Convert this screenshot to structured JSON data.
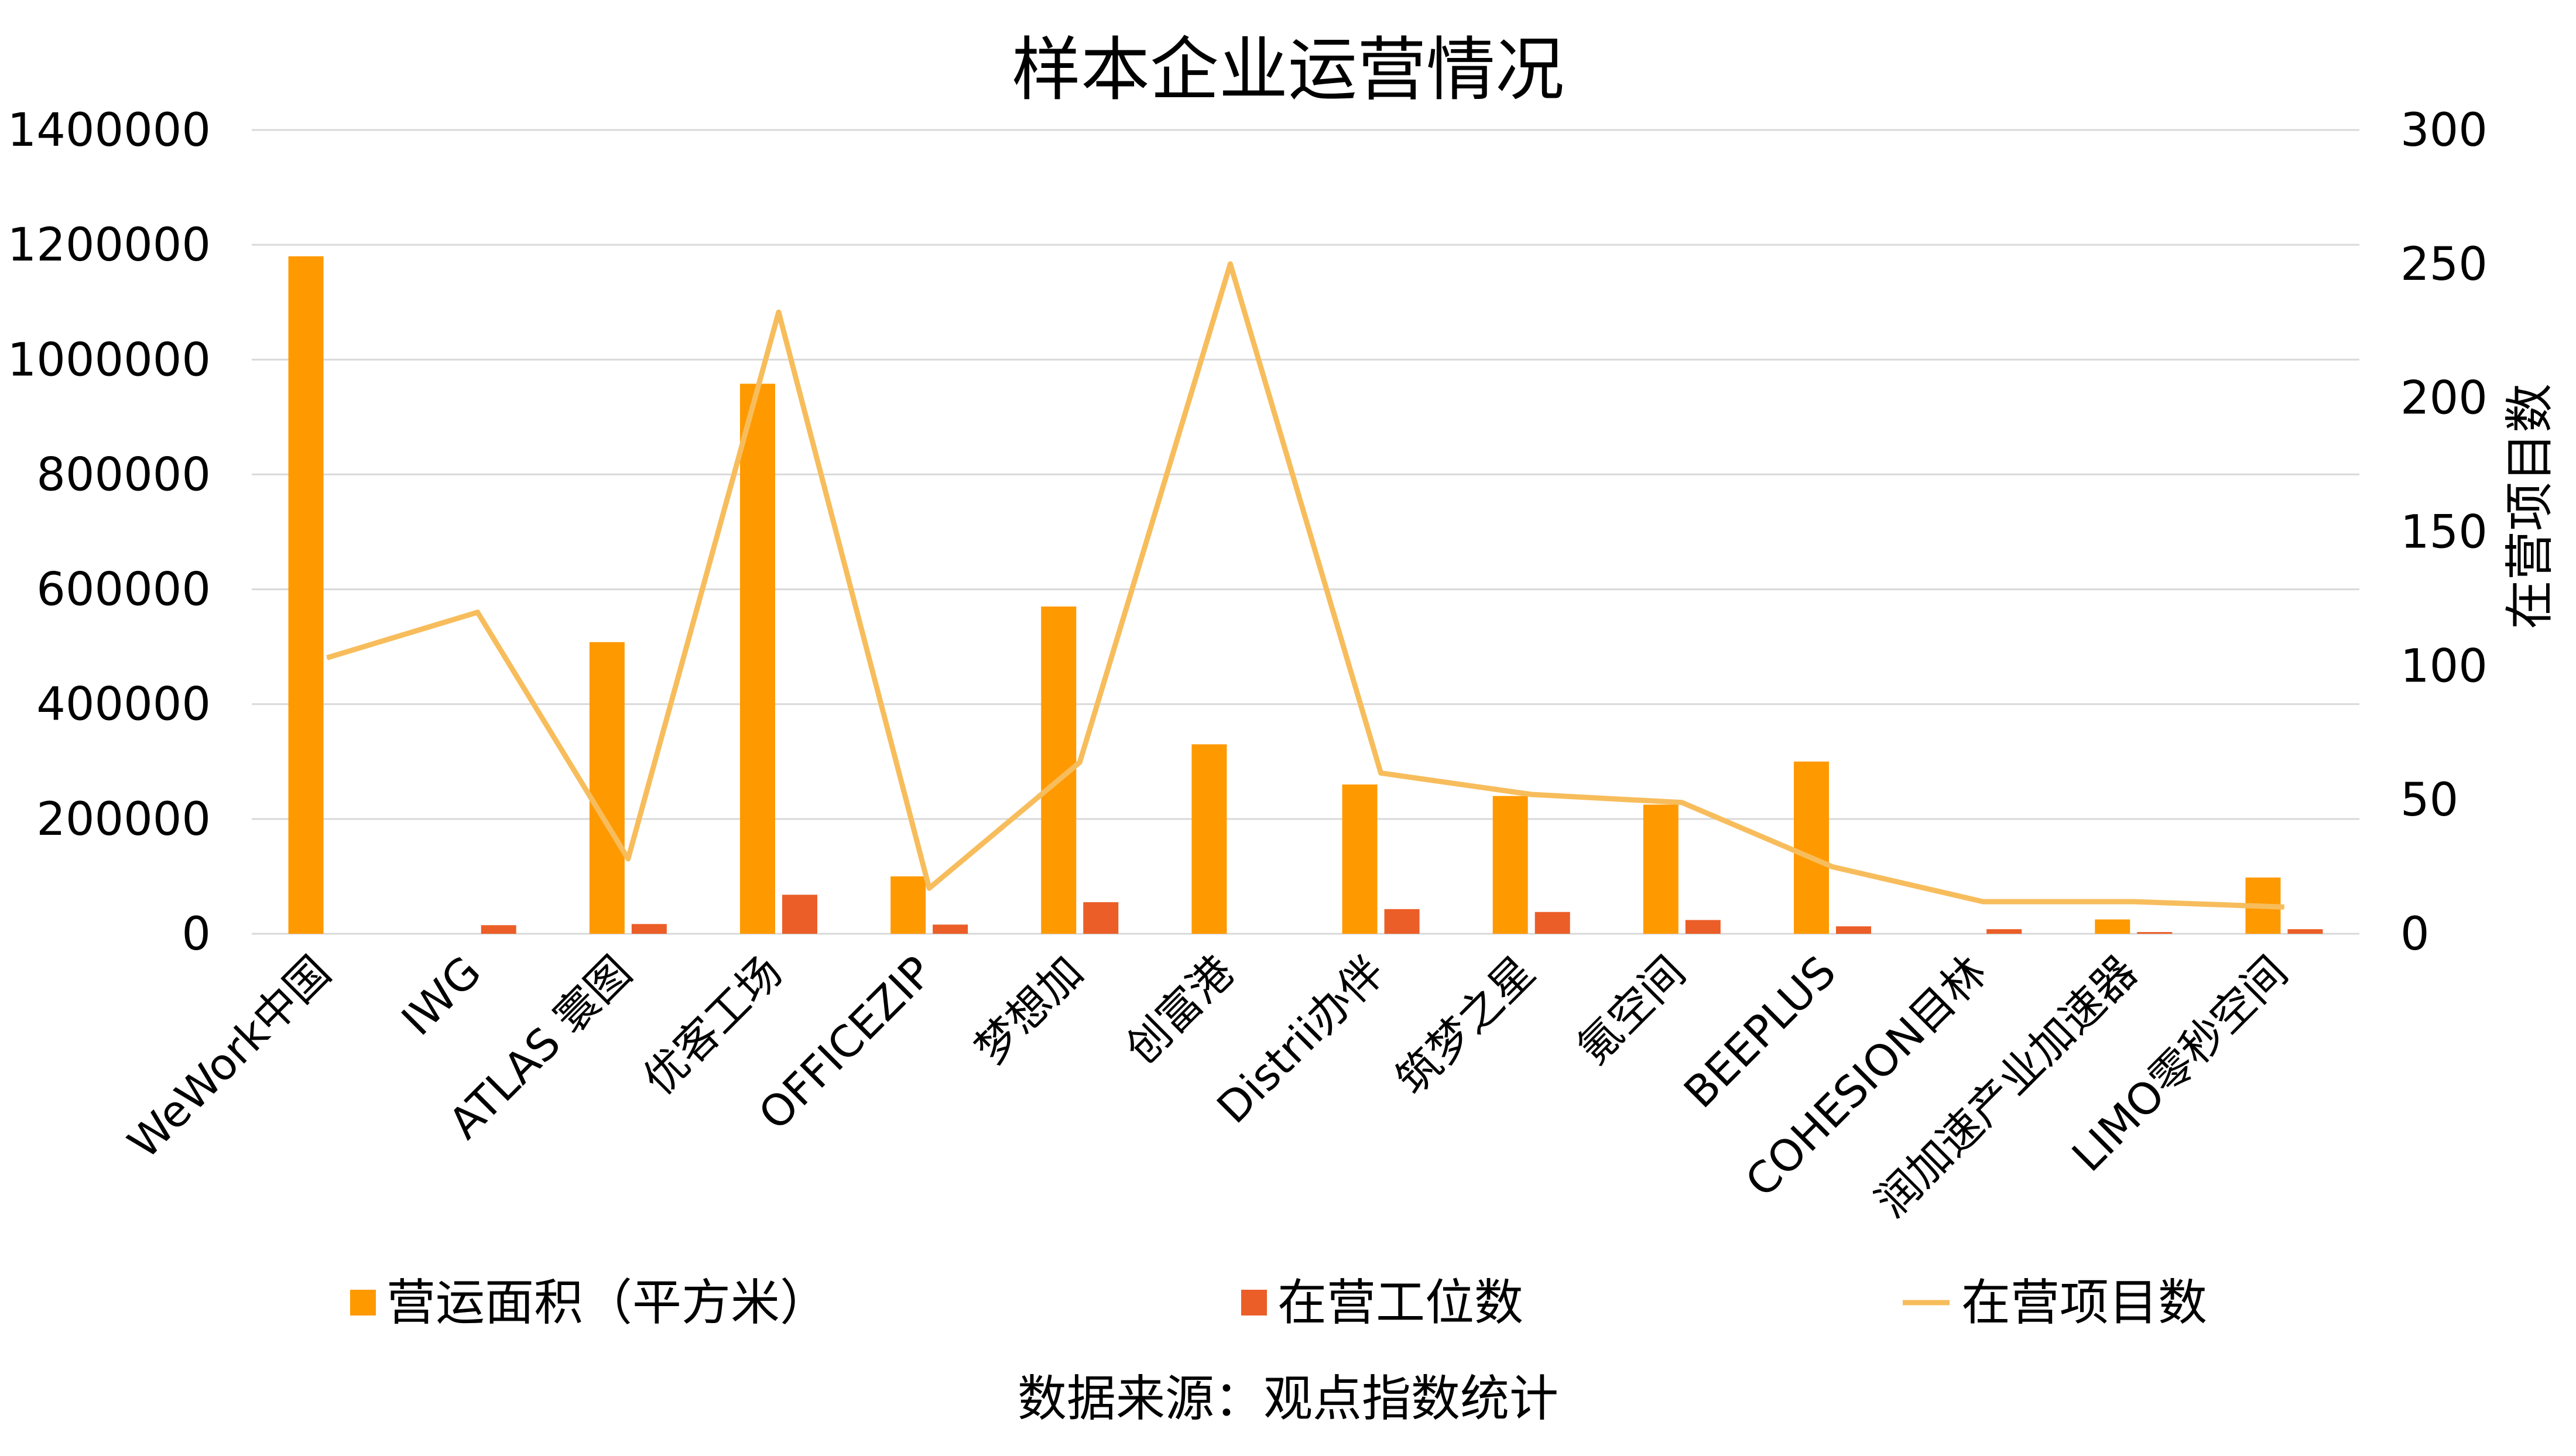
{
  "chart_data": {
    "type": "bar",
    "title": "样本企业运营情况",
    "source": "数据来源：观点指数统计",
    "categories": [
      "WeWork中国",
      "IWG",
      "ATLAS 寰图",
      "优客工场",
      "OFFICEZIP",
      "梦想加",
      "创富港",
      "Distrii办伴",
      "筑梦之星",
      "氪空间",
      "BEEPLUS",
      "COHESION目林",
      "润加速产业加速器",
      "LIMO零秒空间"
    ],
    "y_left": {
      "ticks": [
        "0",
        "200000",
        "400000",
        "600000",
        "800000",
        "1000000",
        "1200000",
        "1400000"
      ],
      "ylim": [
        0,
        1400000
      ]
    },
    "y_right": {
      "label": "在营项目数",
      "ticks": [
        "0",
        "50",
        "100",
        "150",
        "200",
        "250",
        "300"
      ],
      "ylim": [
        0,
        300
      ]
    },
    "grid": true,
    "legend_position": "bottom",
    "series": [
      {
        "name": "营运面积（平方米）",
        "type": "bar",
        "axis": "left",
        "color": "#FF9900",
        "values": [
          1180000,
          0,
          508000,
          958000,
          100000,
          570000,
          330000,
          260000,
          240000,
          225000,
          300000,
          0,
          25000,
          98000
        ]
      },
      {
        "name": "在营工位数",
        "type": "bar",
        "axis": "left",
        "color": "#EB5E28",
        "values": [
          0,
          15000,
          17000,
          68000,
          16000,
          55000,
          0,
          43000,
          38000,
          24000,
          13000,
          8000,
          3000,
          8000
        ]
      },
      {
        "name": "在营项目数",
        "type": "line",
        "axis": "right",
        "color": "#F7BD5C",
        "values": [
          103,
          120,
          28,
          232,
          17,
          64,
          250,
          60,
          52,
          49,
          25,
          12,
          12,
          10
        ]
      }
    ]
  }
}
